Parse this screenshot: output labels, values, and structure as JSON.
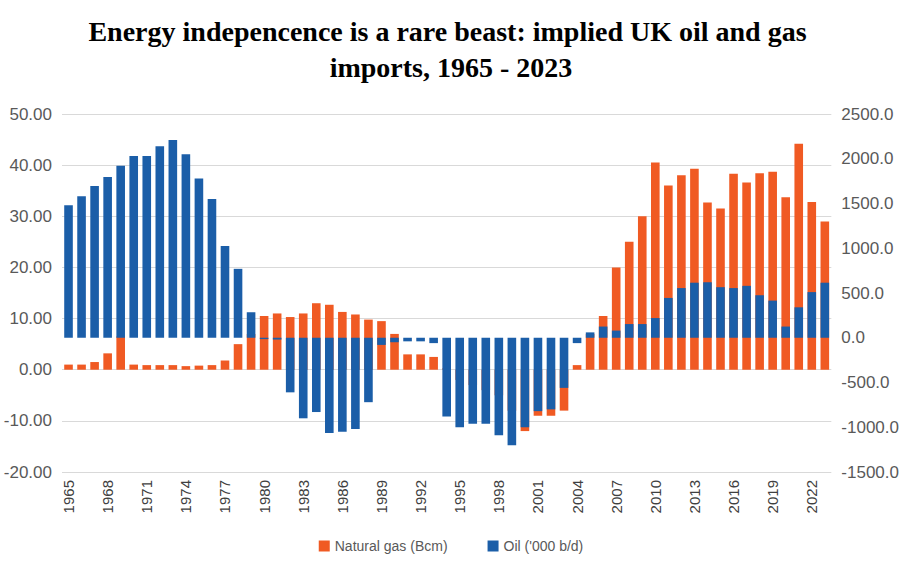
{
  "chart_data": {
    "type": "bar",
    "title": "Energy indepencence is a rare beast: implied UK oil and gas imports, 1965 - 2023",
    "categories": [
      "1965",
      null,
      null,
      "1968",
      null,
      null,
      "1971",
      null,
      null,
      "1974",
      null,
      null,
      "1977",
      null,
      null,
      "1980",
      null,
      null,
      "1983",
      null,
      null,
      "1986",
      null,
      null,
      "1989",
      null,
      null,
      "1992",
      null,
      null,
      "1995",
      null,
      null,
      "1998",
      null,
      null,
      "2001",
      null,
      null,
      "2004",
      null,
      null,
      "2007",
      null,
      null,
      "2010",
      null,
      null,
      "2013",
      null,
      null,
      "2016",
      null,
      null,
      "2019",
      null,
      null,
      "2022",
      null
    ],
    "series": [
      {
        "name": "Natural gas (Bcm)",
        "color": "#f05a23",
        "values": [
          1.0,
          1.0,
          1.5,
          3.2,
          6.5,
          1.0,
          0.9,
          0.9,
          0.9,
          0.7,
          0.8,
          0.9,
          1.8,
          5.0,
          7.0,
          10.5,
          11.0,
          10.3,
          11.0,
          13.0,
          12.7,
          11.3,
          10.8,
          9.8,
          9.5,
          7.0,
          3.0,
          3.0,
          2.5,
          0.3,
          -2.0,
          -3.0,
          -4.0,
          -5.0,
          -8.0,
          -12.0,
          -9.0,
          -9.0,
          -8.0,
          0.9,
          7.0,
          10.5,
          20.0,
          25.0,
          30.0,
          40.5,
          36.0,
          38.0,
          39.3,
          32.7,
          31.5,
          38.3,
          36.6,
          38.4,
          38.7,
          33.7,
          44.2,
          32.8,
          29.0
        ]
      },
      {
        "name": "Oil ('000 b/d)",
        "color": "#1b5ea8",
        "axis": "y2",
        "values": [
          1480,
          1580,
          1695,
          1795,
          1923,
          2030,
          2030,
          2140,
          2210,
          2050,
          1780,
          1550,
          1025,
          770,
          285,
          -15,
          -20,
          -610,
          -900,
          -830,
          -1065,
          -1050,
          -1020,
          -720,
          -80,
          -50,
          -40,
          -40,
          -60,
          -880,
          -1000,
          -960,
          -960,
          -1090,
          -1200,
          -1000,
          -820,
          -800,
          -560,
          -60,
          60,
          125,
          80,
          153,
          153,
          220,
          445,
          555,
          615,
          620,
          565,
          555,
          580,
          475,
          415,
          125,
          340,
          510,
          615
        ]
      }
    ],
    "ylim": [
      -20,
      50
    ],
    "yticks": [
      {
        "value": -20,
        "label": "-20.00"
      },
      {
        "value": -10,
        "label": "-10.00"
      },
      {
        "value": 0,
        "label": "0.00"
      },
      {
        "value": 10,
        "label": "10.00"
      },
      {
        "value": 20,
        "label": "20.00"
      },
      {
        "value": 30,
        "label": "30.00"
      },
      {
        "value": 40,
        "label": "40.00"
      },
      {
        "value": 50,
        "label": "50.00"
      }
    ],
    "y2lim": [
      -1500,
      2500
    ],
    "y2ticks": [
      {
        "value": -1500,
        "label": "-1500.0"
      },
      {
        "value": -1000,
        "label": "-1000.0"
      },
      {
        "value": -500,
        "label": "-500.0"
      },
      {
        "value": 0,
        "label": "0.0"
      },
      {
        "value": 500,
        "label": "500.0"
      },
      {
        "value": 1000,
        "label": "1000.0"
      },
      {
        "value": 1500,
        "label": "1500.0"
      },
      {
        "value": 2000,
        "label": "2000.0"
      },
      {
        "value": 2500,
        "label": "2500.0"
      }
    ],
    "grid": true,
    "legend": "bottom"
  }
}
